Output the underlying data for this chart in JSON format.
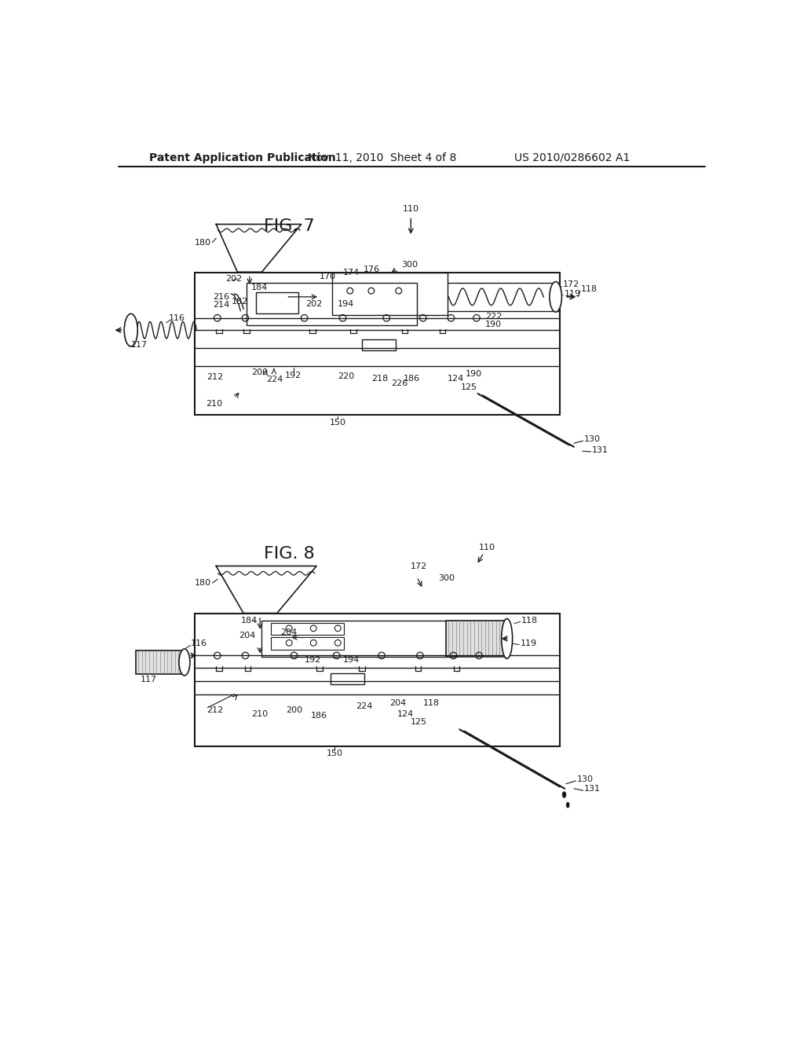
{
  "bg_color": "#ffffff",
  "header_left": "Patent Application Publication",
  "header_mid": "Nov. 11, 2010  Sheet 4 of 8",
  "header_right": "US 2010/0286602 A1",
  "fig7_title": "FIG. 7",
  "fig8_title": "FIG. 8",
  "lc": "#1a1a1a",
  "tc": "#1a1a1a"
}
